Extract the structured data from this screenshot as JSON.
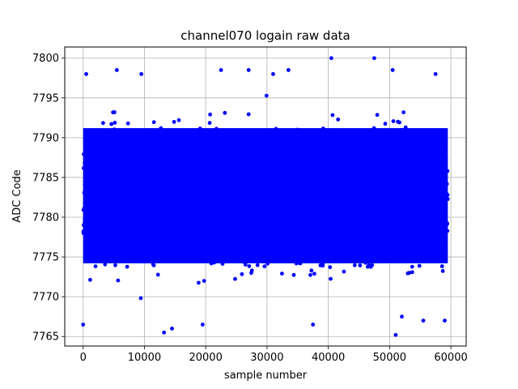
{
  "chart_data": {
    "type": "scatter",
    "title": "channel070 logain raw data",
    "xlabel": "sample number",
    "ylabel": "ADC Code",
    "xlim": [
      -3000,
      62500
    ],
    "ylim": [
      7763.8,
      7801.4
    ],
    "x_ticks": [
      0,
      10000,
      20000,
      30000,
      40000,
      50000,
      60000
    ],
    "x_tick_labels": [
      "0",
      "10000",
      "20000",
      "30000",
      "40000",
      "50000",
      "60000"
    ],
    "y_ticks": [
      7765,
      7770,
      7775,
      7780,
      7785,
      7790,
      7795,
      7800
    ],
    "y_tick_labels": [
      "7765",
      "7770",
      "7775",
      "7780",
      "7785",
      "7790",
      "7795",
      "7800"
    ],
    "grid": true,
    "marker_color": "#0000ff",
    "series": [
      {
        "n_samples": 59500,
        "x_range": [
          0,
          59500
        ],
        "dense_band": [
          7773,
          7792
        ],
        "notable_points": [
          {
            "x": 40500,
            "y": 7800
          },
          {
            "x": 47500,
            "y": 7800
          },
          {
            "x": 27000,
            "y": 7798.5
          },
          {
            "x": 13200,
            "y": 7765.5
          },
          {
            "x": 51000,
            "y": 7765.2
          },
          {
            "x": 14500,
            "y": 7766
          },
          {
            "x": 19500,
            "y": 7766.5
          },
          {
            "x": 37500,
            "y": 7766.5
          },
          {
            "x": 0,
            "y": 7766.5
          },
          {
            "x": 55500,
            "y": 7767
          },
          {
            "x": 59000,
            "y": 7767
          },
          {
            "x": 52000,
            "y": 7767.5
          },
          {
            "x": 500,
            "y": 7798
          },
          {
            "x": 5500,
            "y": 7798.5
          },
          {
            "x": 9500,
            "y": 7798
          },
          {
            "x": 22500,
            "y": 7798.5
          },
          {
            "x": 31000,
            "y": 7798
          },
          {
            "x": 33500,
            "y": 7798.5
          },
          {
            "x": 50500,
            "y": 7798.5
          },
          {
            "x": 57500,
            "y": 7798
          }
        ]
      }
    ]
  }
}
